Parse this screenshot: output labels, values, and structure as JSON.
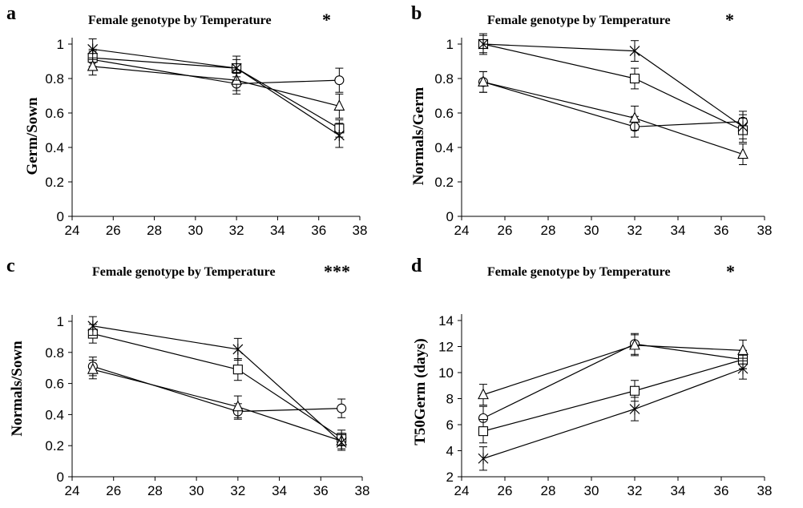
{
  "chart_data": [
    {
      "panel": "a",
      "type": "line",
      "title": "Female genotype by Temperature",
      "significance": "*",
      "xlabel": "",
      "ylabel": "Germ/Sown",
      "xlim": [
        24,
        38
      ],
      "ylim": [
        0,
        1.1
      ],
      "x_ticks": [
        24,
        26,
        28,
        30,
        32,
        34,
        36,
        38
      ],
      "y_ticks": [
        0,
        0.2,
        0.4,
        0.6,
        0.8,
        1
      ],
      "x": [
        25,
        32,
        37
      ],
      "series": [
        {
          "marker": "circle",
          "values": [
            0.91,
            0.77,
            0.79
          ],
          "errors": [
            0.05,
            0.06,
            0.07
          ]
        },
        {
          "marker": "square",
          "values": [
            0.92,
            0.86,
            0.51
          ],
          "errors": [
            0.05,
            0.05,
            0.05
          ]
        },
        {
          "marker": "triangle",
          "values": [
            0.87,
            0.79,
            0.64
          ],
          "errors": [
            0.05,
            0.06,
            0.07
          ]
        },
        {
          "marker": "star",
          "values": [
            0.97,
            0.86,
            0.47
          ],
          "errors": [
            0.06,
            0.07,
            0.07
          ]
        }
      ]
    },
    {
      "panel": "b",
      "type": "line",
      "title": "Female genotype by Temperature",
      "significance": "*",
      "xlabel": "",
      "ylabel": "Normals/Germ",
      "xlim": [
        24,
        38
      ],
      "ylim": [
        0,
        1.1
      ],
      "x_ticks": [
        24,
        26,
        28,
        30,
        32,
        34,
        36,
        38
      ],
      "y_ticks": [
        0,
        0.2,
        0.4,
        0.6,
        0.8,
        1
      ],
      "x": [
        25,
        32,
        37
      ],
      "series": [
        {
          "marker": "circle",
          "values": [
            0.78,
            0.52,
            0.55
          ],
          "errors": [
            0.06,
            0.06,
            0.06
          ]
        },
        {
          "marker": "square",
          "values": [
            1.0,
            0.8,
            0.5
          ],
          "errors": [
            0.05,
            0.06,
            0.07
          ]
        },
        {
          "marker": "triangle",
          "values": [
            0.78,
            0.57,
            0.36
          ],
          "errors": [
            0.06,
            0.07,
            0.06
          ]
        },
        {
          "marker": "star",
          "values": [
            1.0,
            0.96,
            0.52
          ],
          "errors": [
            0.06,
            0.06,
            0.07
          ]
        }
      ]
    },
    {
      "panel": "c",
      "type": "line",
      "title": "Female genotype by Temperature",
      "significance": "***",
      "xlabel": "",
      "ylabel": "Normals/Sown",
      "xlim": [
        24,
        38
      ],
      "ylim": [
        0,
        1.1
      ],
      "x_ticks": [
        24,
        26,
        28,
        30,
        32,
        34,
        36,
        38
      ],
      "y_ticks": [
        0,
        0.2,
        0.4,
        0.6,
        0.8,
        1
      ],
      "x": [
        25,
        32,
        37
      ],
      "series": [
        {
          "marker": "circle",
          "values": [
            0.71,
            0.42,
            0.44
          ],
          "errors": [
            0.06,
            0.05,
            0.06
          ]
        },
        {
          "marker": "square",
          "values": [
            0.92,
            0.69,
            0.25
          ],
          "errors": [
            0.06,
            0.07,
            0.05
          ]
        },
        {
          "marker": "triangle",
          "values": [
            0.69,
            0.45,
            0.23
          ],
          "errors": [
            0.06,
            0.07,
            0.05
          ]
        },
        {
          "marker": "star",
          "values": [
            0.97,
            0.82,
            0.22
          ],
          "errors": [
            0.06,
            0.07,
            0.05
          ]
        }
      ]
    },
    {
      "panel": "d",
      "type": "line",
      "title": "Female genotype by Temperature",
      "significance": "*",
      "xlabel": "",
      "ylabel": "T50Germ (days)",
      "xlim": [
        24,
        38
      ],
      "ylim": [
        2,
        14
      ],
      "x_ticks": [
        24,
        26,
        28,
        30,
        32,
        34,
        36,
        38
      ],
      "y_ticks": [
        2,
        4,
        6,
        8,
        10,
        12,
        14
      ],
      "x": [
        25,
        32,
        37
      ],
      "series": [
        {
          "marker": "circle",
          "values": [
            6.5,
            12.2,
            11.0
          ],
          "errors": [
            0.9,
            0.8,
            0.7
          ]
        },
        {
          "marker": "square",
          "values": [
            5.5,
            8.6,
            11.0
          ],
          "errors": [
            0.9,
            0.8,
            0.7
          ]
        },
        {
          "marker": "triangle",
          "values": [
            8.3,
            12.1,
            11.7
          ],
          "errors": [
            0.8,
            0.8,
            0.8
          ]
        },
        {
          "marker": "star",
          "values": [
            3.4,
            7.2,
            10.3
          ],
          "errors": [
            0.9,
            0.9,
            0.8
          ]
        }
      ]
    }
  ]
}
